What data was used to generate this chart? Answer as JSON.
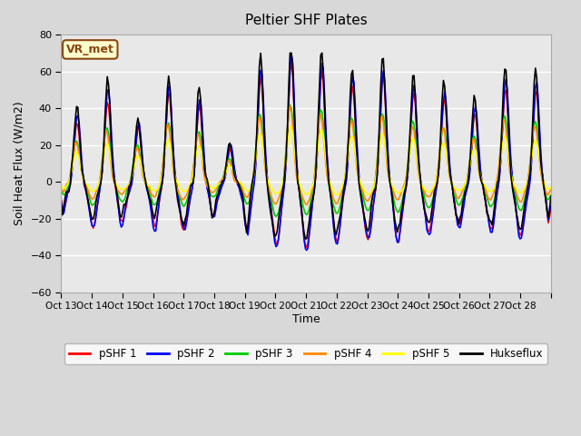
{
  "title": "Peltier SHF Plates",
  "ylabel": "Soil Heat Flux (W/m2)",
  "xlabel": "Time",
  "ylim": [
    -60,
    80
  ],
  "annotation": "VR_met",
  "background_color": "#e8e8e8",
  "grid_color": "#ffffff",
  "series": {
    "pSHF 1": {
      "color": "#ff0000"
    },
    "pSHF 2": {
      "color": "#0000ff"
    },
    "pSHF 3": {
      "color": "#00cc00"
    },
    "pSHF 4": {
      "color": "#ff8800"
    },
    "pSHF 5": {
      "color": "#ffff00"
    },
    "Hukseflux": {
      "color": "#000000"
    }
  },
  "xtick_positions": [
    0,
    1,
    2,
    3,
    4,
    5,
    6,
    7,
    8,
    9,
    10,
    11,
    12,
    13,
    14,
    15,
    16
  ],
  "xtick_labels": [
    "Oct 13",
    "Oct 14",
    "Oct 15",
    "Oct 16",
    "Oct 17",
    "Oct 18",
    "Oct 19",
    "Oct 20",
    "Oct 21",
    "Oct 22",
    "Oct 23",
    "Oct 24",
    "Oct 25",
    "Oct 26",
    "Oct 27",
    "Oct 28",
    ""
  ],
  "ytick_values": [
    -60,
    -40,
    -20,
    0,
    20,
    40,
    60,
    80
  ]
}
